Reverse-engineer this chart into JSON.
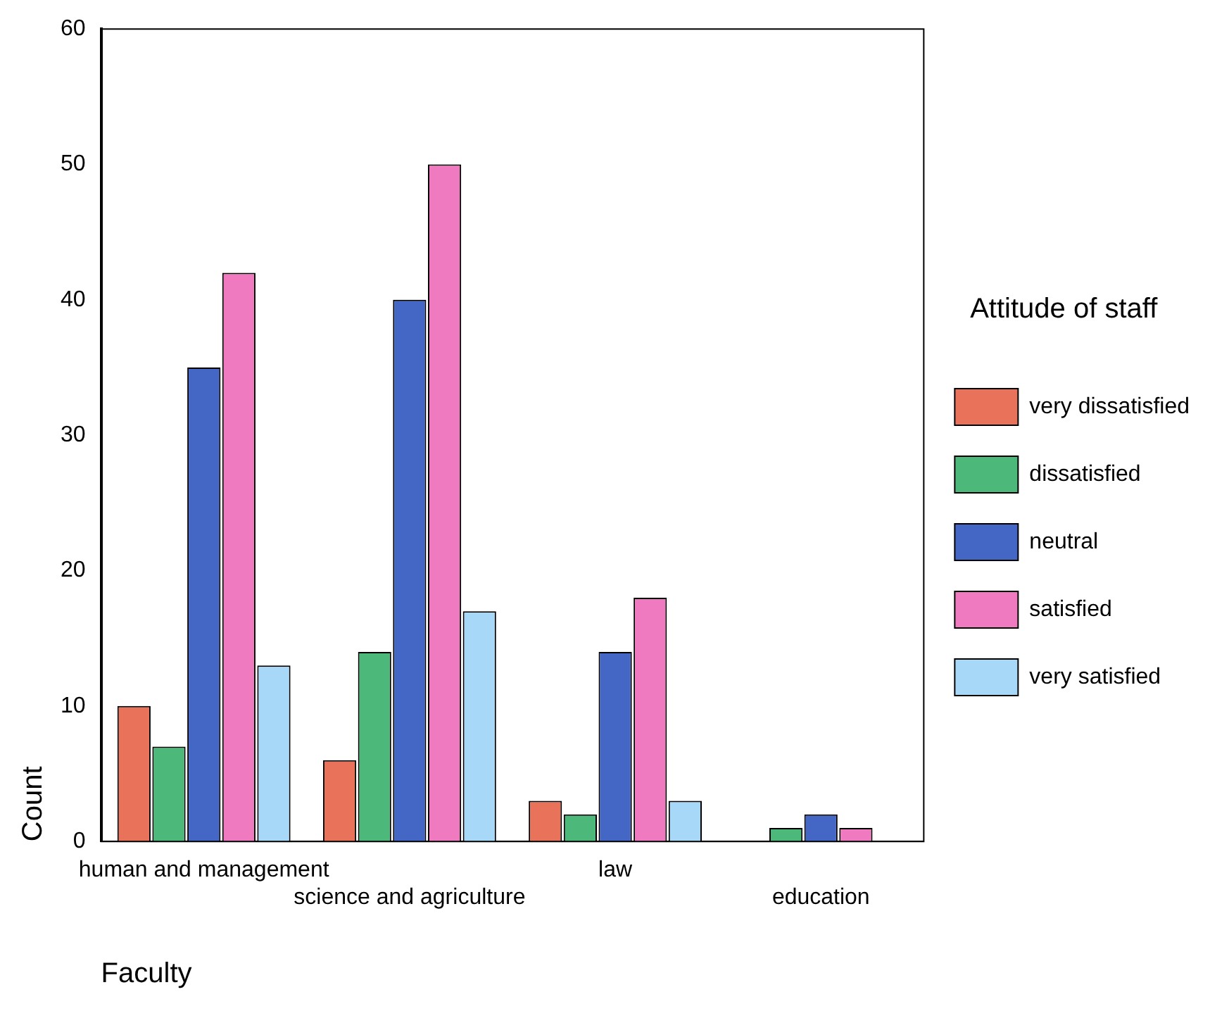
{
  "chart_data": {
    "type": "bar",
    "xlabel": "Faculty",
    "ylabel": "Count",
    "legend_title": "Attitude of staff",
    "legend": "right",
    "grid": false,
    "categories": [
      "human and management",
      "science and agriculture",
      "law",
      "education"
    ],
    "ylim": [
      0,
      60
    ],
    "yticks": [
      0,
      10,
      20,
      30,
      40,
      50,
      60
    ],
    "series": [
      {
        "name": "very dissatisfied",
        "color": "#e8735a",
        "values": [
          10,
          6,
          3,
          0
        ]
      },
      {
        "name": "dissatisfied",
        "color": "#4cb87a",
        "values": [
          7,
          14,
          2,
          1
        ]
      },
      {
        "name": "neutral",
        "color": "#4466c4",
        "values": [
          35,
          40,
          14,
          2
        ]
      },
      {
        "name": "satisfied",
        "color": "#f07ac0",
        "values": [
          42,
          50,
          18,
          1
        ]
      },
      {
        "name": "very satisfied",
        "color": "#a8d8f8",
        "values": [
          13,
          17,
          3,
          0
        ]
      }
    ]
  }
}
